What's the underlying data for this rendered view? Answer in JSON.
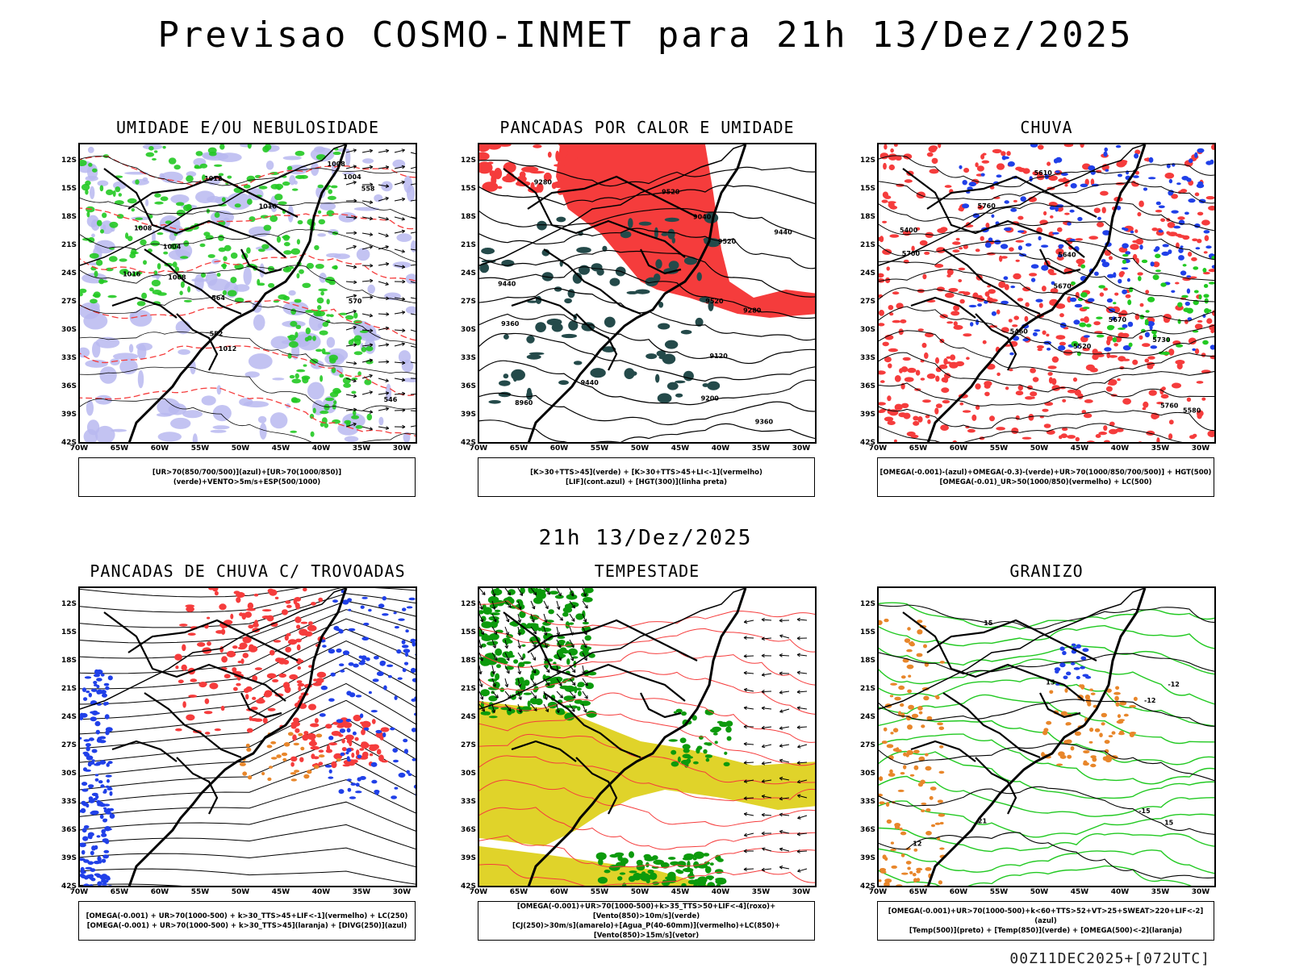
{
  "title": "Previsao COSMO-INMET  para 21h 13/Dez/2025",
  "mid_title": "21h 13/Dez/2025",
  "footer": "00Z11DEC2025+[072UTC]",
  "axes": {
    "lat_labels": [
      "12S",
      "15S",
      "18S",
      "21S",
      "24S",
      "27S",
      "30S",
      "33S",
      "36S",
      "39S",
      "42S"
    ],
    "lon_labels": [
      "70W",
      "65W",
      "60W",
      "55W",
      "50W",
      "45W",
      "40W",
      "35W",
      "30W"
    ]
  },
  "panels": [
    {
      "title": "UMIDADE E/OU NEBULOSIDADE",
      "legend": [
        "[UR>70(850/700/500)](azul)+[UR>70(1000/850)](verde)+VENTO>5m/s+ESP(500/1000)"
      ],
      "theme": "umidade",
      "contour_labels": [
        "1008",
        "1004",
        "1012",
        "1008",
        "1004",
        "1012",
        "1016",
        "1008",
        "1016",
        "570",
        "564",
        "558",
        "552",
        "546"
      ]
    },
    {
      "title": "PANCADAS POR CALOR E UMIDADE",
      "legend": [
        "[K>30+TTS>45](verde) + [K>30+TTS>45+LI<-1](vermelho)",
        "[LIF](cont.azul) + [HGT(300)](linha preta)"
      ],
      "theme": "pancadas",
      "contour_labels": [
        "9520",
        "9520",
        "9520",
        "9440",
        "9440",
        "9440",
        "9360",
        "9360",
        "9280",
        "9280",
        "9200",
        "9120",
        "9040",
        "8960"
      ]
    },
    {
      "title": "CHUVA",
      "legend": [
        "[OMEGA(-0.001)-(azul)+OMEGA(-0.3)-(verde)+UR>70(1000/850/700/500)] + HGT(500)",
        "[OMEGA(-0.01)_UR>50(1000/850)(vermelho) + LC(500)"
      ],
      "theme": "chuva",
      "contour_labels": [
        "5760",
        "5760",
        "5700",
        "5730",
        "5670",
        "5670",
        "5610",
        "5580",
        "5520",
        "5460",
        "5400",
        "5640"
      ]
    },
    {
      "title": "PANCADAS DE CHUVA C/ TROVOADAS",
      "legend": [
        "[OMEGA(-0.001) + UR>70(1000-500) + k>30_TTS>45+LIF<-1](vermelho) + LC(250)",
        "[OMEGA(-0.001) + UR>70(1000-500) + k>30_TTS>45](laranja) + [DIVG(250)](azul)"
      ],
      "theme": "trovoadas",
      "contour_labels": []
    },
    {
      "title": "TEMPESTADE",
      "legend": [
        "[OMEGA(-0.001)+UR>70(1000-500)+k>35_TTS>50+LIF<-4](roxo)+[Vento(850)>10m/s](verde)",
        "[CJ(250)>30m/s](amarelo)+[Agua_P(40-60mm)](vermelho)+LC(850)+[Vento(850)>15m/s](vetor)"
      ],
      "theme": "tempestade",
      "contour_labels": []
    },
    {
      "title": "GRANIZO",
      "legend": [
        "[OMEGA(-0.001)+UR>70(1000-500)+k<60+TTS>52+VT>25+SWEAT>220+LIF<-2](azul)",
        "[Temp(500)](preto) + [Temp(850)](verde) + [OMEGA(500)<-2](laranja)"
      ],
      "theme": "granizo",
      "contour_labels": [
        "-15",
        "-12",
        "15",
        "15",
        "12",
        "15",
        "-12",
        "21"
      ]
    }
  ],
  "colors": {
    "blue_fill": "#b9b9f0",
    "green": "#22c922",
    "red": "#f53c3c",
    "dark_teal": "#244a4a",
    "yellow": "#e0d32a",
    "orange": "#e8862a",
    "blue_dots": "#2040e8",
    "vector_green": "#0c9a0c"
  }
}
